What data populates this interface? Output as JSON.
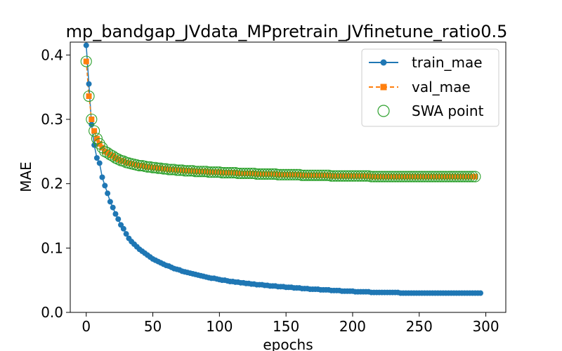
{
  "chart_data": {
    "type": "line",
    "title": "mp_bandgap_JVdata_MPpretrain_JVfinetune_ratio0.5",
    "xlabel": "epochs",
    "ylabel": "MAE",
    "xlim": [
      -12,
      315
    ],
    "ylim": [
      0.0,
      0.42
    ],
    "xticks": [
      0,
      50,
      100,
      150,
      200,
      250,
      300
    ],
    "yticks": [
      0.0,
      0.1,
      0.2,
      0.3,
      0.4
    ],
    "ytick_labels": [
      "0.0",
      "0.1",
      "0.2",
      "0.3",
      "0.4"
    ],
    "grid": false,
    "legend_position": "top-right",
    "colors": {
      "train": "#1f77b4",
      "val": "#ff7f0e",
      "swa": "#2ca02c"
    },
    "series": [
      {
        "name": "train_mae",
        "marker": "circle",
        "line": "solid",
        "x_start": 0,
        "x_step": 2,
        "values": [
          0.415,
          0.355,
          0.292,
          0.26,
          0.24,
          0.232,
          0.21,
          0.197,
          0.185,
          0.172,
          0.163,
          0.153,
          0.145,
          0.136,
          0.13,
          0.122,
          0.115,
          0.11,
          0.106,
          0.102,
          0.098,
          0.095,
          0.092,
          0.089,
          0.086,
          0.083,
          0.081,
          0.079,
          0.077,
          0.075,
          0.073,
          0.072,
          0.07,
          0.068,
          0.067,
          0.066,
          0.064,
          0.063,
          0.062,
          0.061,
          0.06,
          0.059,
          0.058,
          0.057,
          0.056,
          0.055,
          0.054,
          0.053,
          0.053,
          0.052,
          0.051,
          0.05,
          0.05,
          0.049,
          0.048,
          0.048,
          0.047,
          0.047,
          0.046,
          0.046,
          0.045,
          0.045,
          0.044,
          0.044,
          0.043,
          0.043,
          0.043,
          0.042,
          0.042,
          0.041,
          0.041,
          0.041,
          0.04,
          0.04,
          0.04,
          0.039,
          0.039,
          0.039,
          0.038,
          0.038,
          0.038,
          0.037,
          0.037,
          0.037,
          0.036,
          0.036,
          0.036,
          0.036,
          0.035,
          0.035,
          0.035,
          0.035,
          0.034,
          0.034,
          0.034,
          0.034,
          0.033,
          0.033,
          0.033,
          0.033,
          0.033,
          0.032,
          0.032,
          0.032,
          0.032,
          0.032,
          0.032,
          0.031,
          0.031,
          0.031,
          0.031,
          0.031,
          0.031,
          0.031,
          0.031,
          0.031,
          0.031,
          0.031,
          0.03,
          0.03,
          0.03,
          0.03,
          0.03,
          0.03,
          0.03,
          0.03,
          0.03,
          0.03,
          0.03,
          0.03,
          0.03,
          0.03,
          0.03,
          0.03,
          0.03,
          0.03,
          0.03,
          0.03,
          0.03,
          0.03,
          0.03,
          0.03,
          0.03,
          0.03,
          0.03,
          0.03,
          0.03,
          0.03,
          0.03
        ]
      },
      {
        "name": "val_mae",
        "marker": "square",
        "line": "dashed",
        "x_start": 0,
        "x_step": 2,
        "values": [
          0.39,
          0.336,
          0.3,
          0.282,
          0.27,
          0.262,
          0.256,
          0.25,
          0.248,
          0.245,
          0.243,
          0.24,
          0.238,
          0.236,
          0.235,
          0.233,
          0.232,
          0.231,
          0.23,
          0.229,
          0.228,
          0.228,
          0.227,
          0.226,
          0.226,
          0.225,
          0.225,
          0.224,
          0.224,
          0.223,
          0.223,
          0.222,
          0.222,
          0.222,
          0.221,
          0.221,
          0.221,
          0.22,
          0.22,
          0.22,
          0.22,
          0.219,
          0.219,
          0.219,
          0.219,
          0.219,
          0.218,
          0.218,
          0.218,
          0.218,
          0.218,
          0.217,
          0.217,
          0.217,
          0.217,
          0.217,
          0.217,
          0.216,
          0.216,
          0.216,
          0.216,
          0.216,
          0.216,
          0.216,
          0.215,
          0.215,
          0.215,
          0.215,
          0.215,
          0.215,
          0.215,
          0.215,
          0.214,
          0.214,
          0.214,
          0.214,
          0.214,
          0.214,
          0.214,
          0.214,
          0.214,
          0.213,
          0.213,
          0.213,
          0.213,
          0.213,
          0.213,
          0.213,
          0.213,
          0.213,
          0.213,
          0.213,
          0.212,
          0.212,
          0.212,
          0.212,
          0.212,
          0.212,
          0.212,
          0.212,
          0.212,
          0.212,
          0.212,
          0.212,
          0.212,
          0.212,
          0.212,
          0.211,
          0.211,
          0.211,
          0.211,
          0.211,
          0.211,
          0.211,
          0.211,
          0.211,
          0.211,
          0.211,
          0.211,
          0.211,
          0.211,
          0.211,
          0.211,
          0.211,
          0.211,
          0.211,
          0.211,
          0.211,
          0.211,
          0.211,
          0.211,
          0.211,
          0.211,
          0.211,
          0.211,
          0.211,
          0.211,
          0.211,
          0.211,
          0.211,
          0.211,
          0.211,
          0.211,
          0.211,
          0.211,
          0.211,
          0.211
        ]
      },
      {
        "name": "SWA point",
        "marker": "open-circle",
        "line": "none",
        "x_start": 0,
        "x_step": 2,
        "values": [
          0.39,
          0.336,
          0.3,
          0.282,
          0.27,
          0.262,
          0.256,
          0.25,
          0.248,
          0.245,
          0.243,
          0.24,
          0.238,
          0.236,
          0.235,
          0.233,
          0.232,
          0.231,
          0.23,
          0.229,
          0.228,
          0.228,
          0.227,
          0.226,
          0.226,
          0.225,
          0.225,
          0.224,
          0.224,
          0.223,
          0.223,
          0.222,
          0.222,
          0.222,
          0.221,
          0.221,
          0.221,
          0.22,
          0.22,
          0.22,
          0.22,
          0.219,
          0.219,
          0.219,
          0.219,
          0.219,
          0.218,
          0.218,
          0.218,
          0.218,
          0.218,
          0.217,
          0.217,
          0.217,
          0.217,
          0.217,
          0.217,
          0.216,
          0.216,
          0.216,
          0.216,
          0.216,
          0.216,
          0.216,
          0.215,
          0.215,
          0.215,
          0.215,
          0.215,
          0.215,
          0.215,
          0.215,
          0.214,
          0.214,
          0.214,
          0.214,
          0.214,
          0.214,
          0.214,
          0.214,
          0.214,
          0.213,
          0.213,
          0.213,
          0.213,
          0.213,
          0.213,
          0.213,
          0.213,
          0.213,
          0.213,
          0.213,
          0.212,
          0.212,
          0.212,
          0.212,
          0.212,
          0.212,
          0.212,
          0.212,
          0.212,
          0.212,
          0.212,
          0.212,
          0.212,
          0.212,
          0.212,
          0.211,
          0.211,
          0.211,
          0.211,
          0.211,
          0.211,
          0.211,
          0.211,
          0.211,
          0.211,
          0.211,
          0.211,
          0.211,
          0.211,
          0.211,
          0.211,
          0.211,
          0.211,
          0.211,
          0.211,
          0.211,
          0.211,
          0.211,
          0.211,
          0.211,
          0.211,
          0.211,
          0.211,
          0.211,
          0.211,
          0.211,
          0.211,
          0.211,
          0.211,
          0.211,
          0.211,
          0.211,
          0.211,
          0.211,
          0.211
        ]
      }
    ]
  }
}
